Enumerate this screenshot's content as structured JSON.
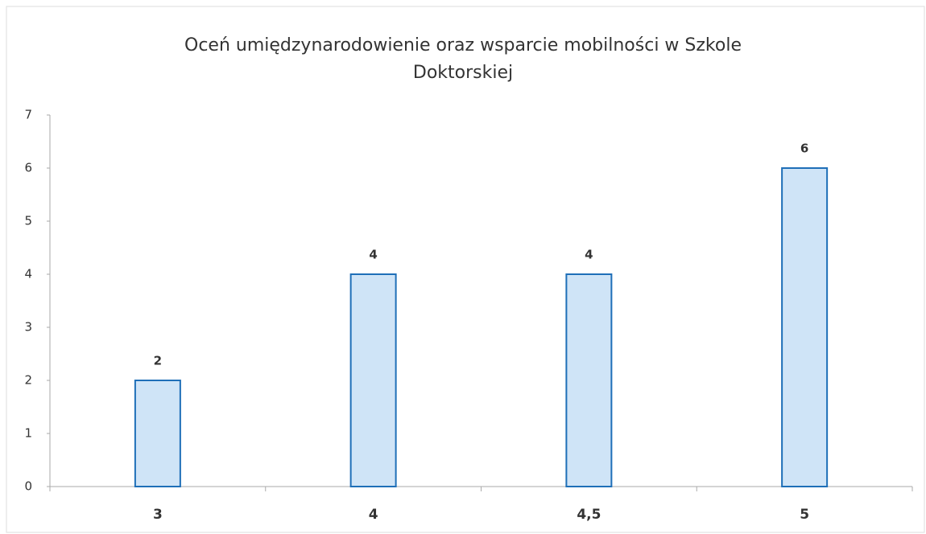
{
  "chart_data": {
    "type": "bar",
    "title": "Oceń umiędzynarodowienie oraz wsparcie mobilności w Szkole Doktorskiej",
    "categories": [
      "3",
      "4",
      "4,5",
      "5"
    ],
    "values": [
      2,
      4,
      4,
      6
    ],
    "color": "#cfe4f7",
    "edge_color": "#1f6fb8",
    "ylim": [
      0,
      7
    ],
    "yticks": [
      0,
      1,
      2,
      3,
      4,
      5,
      6,
      7
    ],
    "grid": false
  }
}
